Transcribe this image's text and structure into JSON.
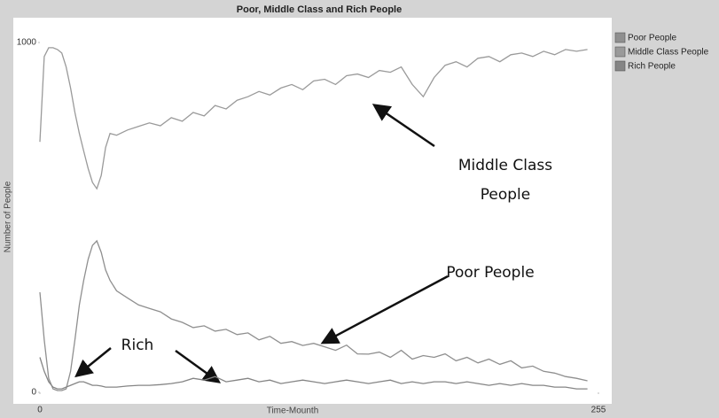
{
  "chart_data": {
    "type": "line",
    "title": "Poor, Middle Class and Rich People",
    "x_label": "Time-Mounth",
    "y_label": "Number of People",
    "xlim": [
      0,
      255
    ],
    "ylim": [
      0,
      1000
    ],
    "xticks": [
      0,
      255
    ],
    "yticks": [
      0,
      1000
    ],
    "x": [
      0,
      2,
      4,
      6,
      8,
      10,
      12,
      14,
      16,
      18,
      20,
      22,
      24,
      26,
      28,
      30,
      32,
      35,
      40,
      45,
      50,
      55,
      60,
      65,
      70,
      75,
      80,
      85,
      90,
      95,
      100,
      105,
      110,
      115,
      120,
      125,
      130,
      135,
      140,
      145,
      150,
      155,
      160,
      165,
      170,
      175,
      180,
      185,
      190,
      195,
      200,
      205,
      210,
      215,
      220,
      225,
      230,
      235,
      240,
      245,
      250
    ],
    "series": [
      {
        "name": "Poor People",
        "color": "#8f8f8f",
        "values": [
          286,
          150,
          40,
          10,
          5,
          5,
          10,
          60,
          150,
          250,
          320,
          380,
          420,
          433,
          400,
          350,
          320,
          290,
          270,
          250,
          240,
          230,
          210,
          200,
          185,
          190,
          175,
          180,
          165,
          170,
          150,
          160,
          140,
          145,
          134,
          140,
          130,
          120,
          135,
          110,
          109,
          115,
          100,
          120,
          95,
          105,
          100,
          110,
          90,
          100,
          84,
          95,
          80,
          90,
          70,
          75,
          60,
          55,
          45,
          40,
          33
        ]
      },
      {
        "name": "Middle Class People",
        "color": "#9a9a9a",
        "values": [
          716,
          960,
          985,
          985,
          980,
          970,
          930,
          870,
          800,
          740,
          690,
          640,
          600,
          582,
          620,
          700,
          740,
          735,
          750,
          760,
          770,
          762,
          785,
          775,
          800,
          790,
          820,
          810,
          835,
          845,
          860,
          850,
          870,
          880,
          865,
          890,
          895,
          880,
          905,
          910,
          900,
          920,
          915,
          930,
          880,
          845,
          900,
          935,
          945,
          930,
          955,
          960,
          945,
          965,
          970,
          960,
          975,
          965,
          980,
          975,
          980
        ]
      },
      {
        "name": "Rich People",
        "color": "#858585",
        "values": [
          100,
          60,
          30,
          15,
          10,
          10,
          15,
          20,
          25,
          30,
          30,
          25,
          20,
          20,
          18,
          15,
          15,
          15,
          18,
          20,
          20,
          22,
          25,
          30,
          40,
          35,
          45,
          30,
          35,
          40,
          30,
          35,
          25,
          30,
          35,
          30,
          25,
          30,
          35,
          30,
          25,
          30,
          35,
          25,
          30,
          25,
          30,
          30,
          25,
          30,
          25,
          20,
          25,
          20,
          25,
          20,
          20,
          15,
          15,
          10,
          10
        ]
      }
    ],
    "annotations": [
      {
        "lines": [
          "Middle Class",
          "People"
        ]
      },
      {
        "lines": [
          "Poor People"
        ]
      },
      {
        "lines": [
          "Rich"
        ]
      }
    ]
  }
}
